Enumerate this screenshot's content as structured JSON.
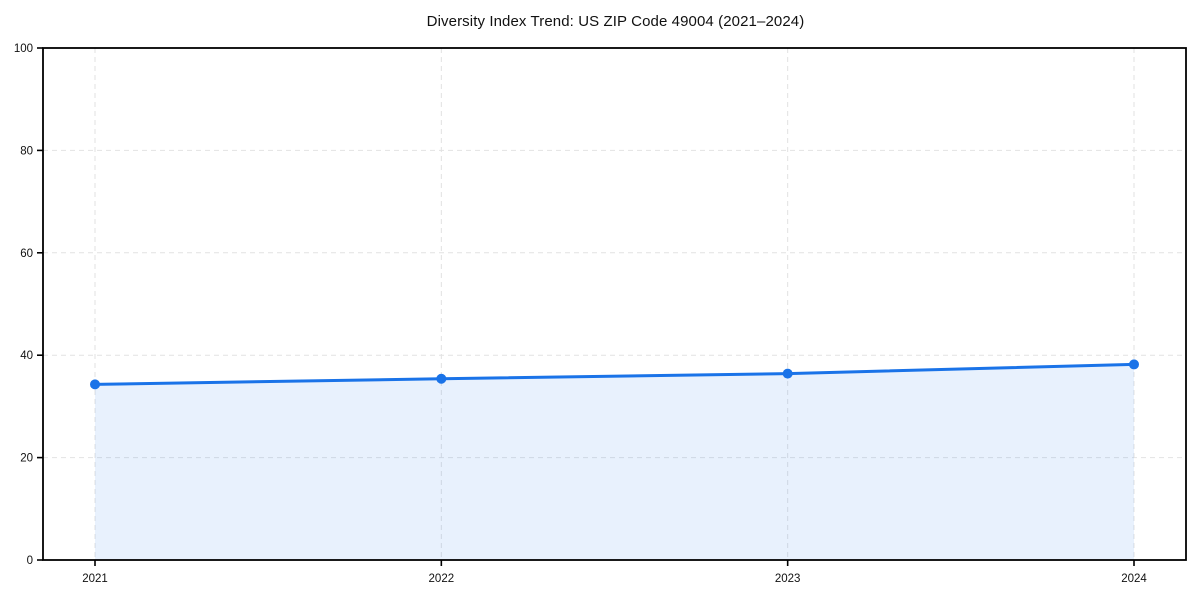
{
  "page": {
    "background": "#ffffff"
  },
  "chart_data": {
    "type": "area",
    "title": "Diversity Index Trend: US ZIP Code 49004 (2021–2024)",
    "categories": [
      "2021",
      "2022",
      "2023",
      "2024"
    ],
    "series": [
      {
        "name": "Diversity Index",
        "values": [
          34.3,
          35.4,
          36.4,
          38.2
        ]
      }
    ],
    "xlabel": "",
    "ylabel": "",
    "ylim": [
      0,
      100
    ],
    "yticks": [
      0,
      20,
      40,
      60,
      80,
      100
    ],
    "grid": true,
    "grid_style": "dashed",
    "legend_position": "none",
    "line_color": "#1a73e8",
    "marker_color": "#1a73e8",
    "fill_color": "#1a73e8",
    "fill_opacity": 0.1,
    "grid_color": "#e2e2e2",
    "spine_color": "#000000",
    "tick_label_color": "#111111"
  }
}
